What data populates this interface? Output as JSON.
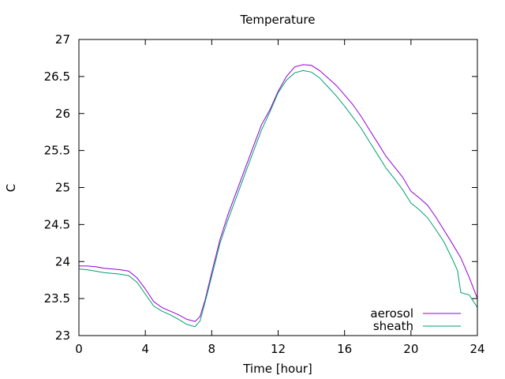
{
  "chart_data": {
    "type": "line",
    "title": "Temperature",
    "xlabel": "Time [hour]",
    "ylabel": "C",
    "xlim": [
      0,
      24
    ],
    "ylim": [
      23,
      27
    ],
    "xticks": [
      0,
      4,
      8,
      12,
      16,
      20,
      24
    ],
    "yticks": [
      23,
      23.5,
      24,
      24.5,
      25,
      25.5,
      26,
      26.5,
      27
    ],
    "ytick_labels": [
      "23",
      "23.5",
      "24",
      "24.5",
      "25",
      "25.5",
      "26",
      "26.5",
      "27"
    ],
    "grid": false,
    "legend_position": "bottom-right",
    "series": [
      {
        "name": "aerosol",
        "color": "#9400d3",
        "x": [
          0,
          0.5,
          1,
          1.5,
          2,
          2.5,
          3,
          3.5,
          4,
          4.5,
          5,
          5.5,
          6,
          6.5,
          7,
          7.3,
          7.6,
          8,
          8.5,
          9,
          9.5,
          10,
          10.5,
          11,
          11.5,
          12,
          12.5,
          13,
          13.5,
          14,
          14.5,
          15,
          15.5,
          16,
          16.5,
          17,
          17.5,
          18,
          18.5,
          19,
          19.5,
          20,
          20.5,
          21,
          21.5,
          22,
          22.5,
          23,
          23.5,
          24
        ],
        "values": [
          23.94,
          23.94,
          23.93,
          23.91,
          23.9,
          23.89,
          23.87,
          23.78,
          23.63,
          23.46,
          23.38,
          23.33,
          23.28,
          23.22,
          23.19,
          23.26,
          23.48,
          23.85,
          24.3,
          24.65,
          24.95,
          25.25,
          25.55,
          25.85,
          26.05,
          26.3,
          26.5,
          26.63,
          26.66,
          26.65,
          26.58,
          26.48,
          26.38,
          26.25,
          26.12,
          25.96,
          25.78,
          25.6,
          25.42,
          25.28,
          25.14,
          24.95,
          24.86,
          24.76,
          24.6,
          24.42,
          24.24,
          24.05,
          23.79,
          23.5
        ]
      },
      {
        "name": "sheath",
        "color": "#009e73",
        "x": [
          0,
          0.5,
          1,
          1.5,
          2,
          2.5,
          3,
          3.5,
          4,
          4.5,
          5,
          5.5,
          6,
          6.5,
          7,
          7.3,
          7.6,
          8,
          8.5,
          9,
          9.5,
          10,
          10.5,
          11,
          11.5,
          12,
          12.5,
          13,
          13.5,
          14,
          14.5,
          15,
          15.5,
          16,
          16.5,
          17,
          17.5,
          18,
          18.5,
          19,
          19.5,
          20,
          20.5,
          21,
          21.5,
          22,
          22.5,
          22.8,
          23,
          23.5,
          24
        ],
        "values": [
          23.9,
          23.89,
          23.87,
          23.85,
          23.84,
          23.83,
          23.81,
          23.72,
          23.56,
          23.4,
          23.33,
          23.28,
          23.22,
          23.15,
          23.12,
          23.2,
          23.45,
          23.8,
          24.25,
          24.58,
          24.88,
          25.18,
          25.48,
          25.78,
          26.02,
          26.28,
          26.45,
          26.55,
          26.58,
          26.56,
          26.48,
          26.36,
          26.24,
          26.1,
          25.95,
          25.8,
          25.62,
          25.44,
          25.26,
          25.12,
          24.97,
          24.79,
          24.7,
          24.59,
          24.43,
          24.26,
          24.03,
          23.88,
          23.58,
          23.55,
          23.38
        ]
      }
    ]
  }
}
